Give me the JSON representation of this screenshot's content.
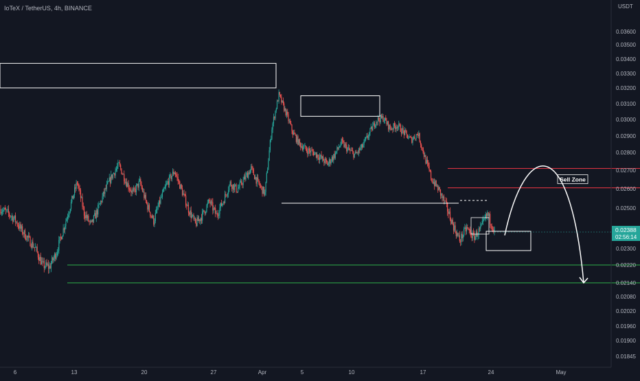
{
  "header": {
    "symbol_line": "IoTeX / TetherUS, 4h, BINANCE"
  },
  "chart_data": {
    "type": "candlestick",
    "title": "IoTeX / TetherUS, 4h, BINANCE",
    "axis_unit": "USDT",
    "y_ticks": [
      "0.03600",
      "0.03500",
      "0.03400",
      "0.03300",
      "0.03200",
      "0.03100",
      "0.03000",
      "0.02900",
      "0.02800",
      "0.02700",
      "0.02600",
      "0.02500",
      "0.02300",
      "0.02220",
      "0.02140",
      "0.02080",
      "0.02020",
      "0.01960",
      "0.01900",
      "0.01845"
    ],
    "x_ticks": [
      "6",
      "13",
      "20",
      "27",
      "Apr",
      "5",
      "10",
      "17",
      "24",
      "May"
    ],
    "grid": false,
    "last_price": {
      "value": "0.02388",
      "countdown": "02:56:14"
    },
    "candle_path": [
      [
        0.0248,
        0.0251
      ],
      [
        0.02452,
        0.025
      ],
      [
        0.0243,
        0.0246
      ],
      [
        0.0237,
        0.0241
      ],
      [
        0.0233,
        0.0236
      ],
      [
        0.0228,
        0.0232
      ],
      [
        0.0218,
        0.0226
      ],
      [
        0.022,
        0.0222
      ],
      [
        0.0226,
        0.023
      ],
      [
        0.0238,
        0.0241
      ],
      [
        0.025,
        0.0252
      ],
      [
        0.0262,
        0.0265
      ],
      [
        0.0245,
        0.025
      ],
      [
        0.024,
        0.0243
      ],
      [
        0.0248,
        0.0251
      ],
      [
        0.0258,
        0.026
      ],
      [
        0.0265,
        0.0269
      ],
      [
        0.0272,
        0.0274
      ],
      [
        0.0262,
        0.0266
      ],
      [
        0.0256,
        0.0259
      ],
      [
        0.0262,
        0.0265
      ],
      [
        0.025,
        0.0254
      ],
      [
        0.0242,
        0.0245
      ],
      [
        0.0253,
        0.0256
      ],
      [
        0.0262,
        0.0265
      ],
      [
        0.0268,
        0.0271
      ],
      [
        0.0258,
        0.0261
      ],
      [
        0.0248,
        0.0251
      ],
      [
        0.024,
        0.0244
      ],
      [
        0.0245,
        0.0248
      ],
      [
        0.0252,
        0.0255
      ],
      [
        0.0245,
        0.0248
      ],
      [
        0.0252,
        0.0255
      ],
      [
        0.0262,
        0.0264
      ],
      [
        0.0258,
        0.0261
      ],
      [
        0.0264,
        0.0266
      ],
      [
        0.027,
        0.0272
      ],
      [
        0.0262,
        0.0264
      ],
      [
        0.0256,
        0.0259
      ],
      [
        0.0292,
        0.0298
      ],
      [
        0.0313,
        0.0318
      ],
      [
        0.0303,
        0.0306
      ],
      [
        0.029,
        0.0294
      ],
      [
        0.0284,
        0.0286
      ],
      [
        0.028,
        0.0283
      ],
      [
        0.0278,
        0.0282
      ],
      [
        0.0276,
        0.0278
      ],
      [
        0.0272,
        0.0275
      ],
      [
        0.0277,
        0.028
      ],
      [
        0.0284,
        0.0288
      ],
      [
        0.028,
        0.0283
      ],
      [
        0.0277,
        0.028
      ],
      [
        0.0282,
        0.0285
      ],
      [
        0.029,
        0.0293
      ],
      [
        0.0298,
        0.0301
      ],
      [
        0.03,
        0.0302
      ],
      [
        0.0293,
        0.0296
      ],
      [
        0.0295,
        0.0298
      ],
      [
        0.0291,
        0.0293
      ],
      [
        0.0286,
        0.0289
      ],
      [
        0.029,
        0.0293
      ],
      [
        0.0275,
        0.0279
      ],
      [
        0.0263,
        0.0267
      ],
      [
        0.0257,
        0.0262
      ],
      [
        0.025,
        0.0253
      ],
      [
        0.024,
        0.0244
      ],
      [
        0.0232,
        0.0236
      ],
      [
        0.0238,
        0.0242
      ],
      [
        0.0234,
        0.0237
      ],
      [
        0.0238,
        0.0241
      ],
      [
        0.0244,
        0.025
      ],
      [
        0.0238,
        0.024
      ]
    ],
    "annotations": [
      {
        "type": "box",
        "x": [
          0,
          402
        ],
        "y": [
          0.0337,
          0.032
        ]
      },
      {
        "type": "box",
        "x": [
          438,
          553
        ],
        "y": [
          0.0315,
          0.0302
        ]
      },
      {
        "type": "hline",
        "x": [
          410,
          668
        ],
        "y": 0.02525
      },
      {
        "type": "hline",
        "x": [
          652,
          932
        ],
        "y": 0.0271,
        "color": "#f23645"
      },
      {
        "type": "hline",
        "x": [
          652,
          932
        ],
        "y": 0.02605,
        "color": "#f23645"
      },
      {
        "type": "label",
        "text": "Sell Zone",
        "x": 834,
        "y": 0.0265
      },
      {
        "type": "box",
        "x": [
          708,
          773
        ],
        "y": [
          0.02385,
          0.0229
        ]
      },
      {
        "type": "hline",
        "x": [
          98,
          932
        ],
        "y": 0.0222,
        "color": "#2db04a"
      },
      {
        "type": "hline",
        "x": [
          98,
          932
        ],
        "y": 0.0214,
        "color": "#2db04a"
      },
      {
        "type": "arrow",
        "from": [
          735,
          0.02365
        ],
        "to": [
          850,
          0.0214
        ]
      }
    ]
  }
}
